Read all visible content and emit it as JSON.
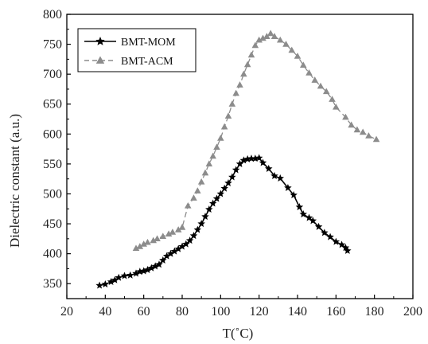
{
  "chart_data": {
    "type": "line",
    "xlabel": "T(˚C)",
    "ylabel": "Dielectric constant (a.u.)",
    "xlim": [
      20,
      200
    ],
    "ylim": [
      325,
      800
    ],
    "xticks": [
      20,
      40,
      60,
      80,
      100,
      120,
      140,
      160,
      180,
      200
    ],
    "yticks": [
      350,
      400,
      450,
      500,
      550,
      600,
      650,
      700,
      750,
      800
    ],
    "grid": false,
    "legend": "top-left",
    "series": [
      {
        "name": "BMT-MOM",
        "color": "#000000",
        "marker": "star",
        "line": "solid",
        "points": [
          [
            37,
            347
          ],
          [
            40,
            349
          ],
          [
            43,
            353
          ],
          [
            45,
            356
          ],
          [
            47,
            360
          ],
          [
            50,
            363
          ],
          [
            53,
            364
          ],
          [
            56,
            367
          ],
          [
            58,
            370
          ],
          [
            60,
            371
          ],
          [
            62,
            373
          ],
          [
            64,
            376
          ],
          [
            66,
            379
          ],
          [
            68,
            382
          ],
          [
            70,
            389
          ],
          [
            72,
            396
          ],
          [
            74,
            400
          ],
          [
            76,
            404
          ],
          [
            78,
            408
          ],
          [
            80,
            412
          ],
          [
            82,
            416
          ],
          [
            84,
            422
          ],
          [
            86,
            430
          ],
          [
            88,
            440
          ],
          [
            90,
            450
          ],
          [
            92,
            462
          ],
          [
            94,
            474
          ],
          [
            96,
            484
          ],
          [
            98,
            492
          ],
          [
            100,
            500
          ],
          [
            102,
            509
          ],
          [
            104,
            518
          ],
          [
            106,
            528
          ],
          [
            108,
            540
          ],
          [
            110,
            550
          ],
          [
            112,
            556
          ],
          [
            114,
            558
          ],
          [
            116,
            559
          ],
          [
            118,
            559
          ],
          [
            120,
            560
          ],
          [
            122,
            552
          ],
          [
            125,
            542
          ],
          [
            128,
            530
          ],
          [
            131,
            526
          ],
          [
            135,
            510
          ],
          [
            138,
            498
          ],
          [
            141,
            478
          ],
          [
            143,
            466
          ],
          [
            146,
            460
          ],
          [
            148,
            455
          ],
          [
            151,
            445
          ],
          [
            154,
            435
          ],
          [
            157,
            428
          ],
          [
            160,
            420
          ],
          [
            163,
            415
          ],
          [
            165,
            410
          ],
          [
            166,
            405
          ]
        ]
      },
      {
        "name": "BMT-ACM",
        "color": "#8c8c8c",
        "marker": "triangle",
        "line": "dashed",
        "points": [
          [
            56,
            409
          ],
          [
            58,
            412
          ],
          [
            60,
            416
          ],
          [
            62,
            419
          ],
          [
            65,
            422
          ],
          [
            67,
            425
          ],
          [
            70,
            429
          ],
          [
            73,
            433
          ],
          [
            75,
            436
          ],
          [
            78,
            440
          ],
          [
            80,
            444
          ],
          [
            83,
            480
          ],
          [
            86,
            493
          ],
          [
            88,
            505
          ],
          [
            90,
            520
          ],
          [
            92,
            535
          ],
          [
            94,
            550
          ],
          [
            96,
            563
          ],
          [
            98,
            578
          ],
          [
            100,
            593
          ],
          [
            102,
            612
          ],
          [
            104,
            630
          ],
          [
            106,
            650
          ],
          [
            108,
            668
          ],
          [
            110,
            682
          ],
          [
            112,
            700
          ],
          [
            114,
            716
          ],
          [
            116,
            732
          ],
          [
            118,
            748
          ],
          [
            120,
            757
          ],
          [
            122,
            760
          ],
          [
            124,
            763
          ],
          [
            126,
            768
          ],
          [
            128,
            763
          ],
          [
            131,
            757
          ],
          [
            134,
            750
          ],
          [
            137,
            740
          ],
          [
            140,
            730
          ],
          [
            143,
            715
          ],
          [
            146,
            702
          ],
          [
            149,
            690
          ],
          [
            152,
            680
          ],
          [
            155,
            671
          ],
          [
            158,
            658
          ],
          [
            160,
            645
          ],
          [
            165,
            628
          ],
          [
            168,
            615
          ],
          [
            171,
            607
          ],
          [
            174,
            603
          ],
          [
            177,
            597
          ],
          [
            181,
            591
          ]
        ]
      }
    ]
  }
}
